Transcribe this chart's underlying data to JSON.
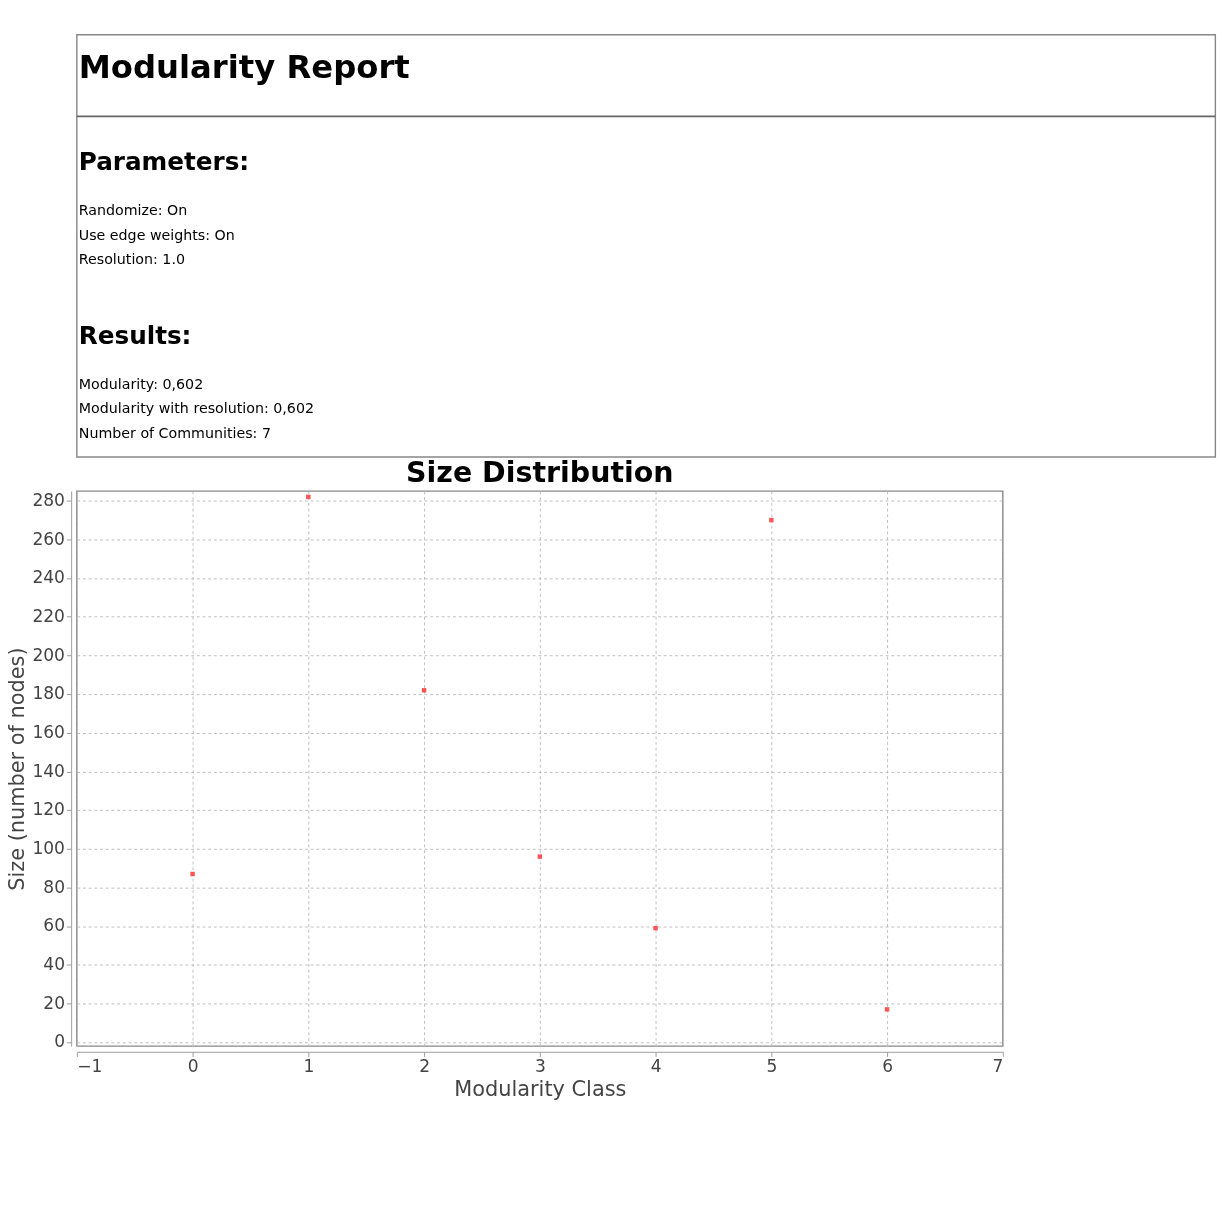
{
  "chart_data": {
    "type": "scatter",
    "title": "Size Distribution",
    "xlabel": "Modularity Class",
    "ylabel": "Size (number of nodes)",
    "annotations": [
      "Modularity Report",
      "Parameters:",
      "Randomize: On",
      "Use edge weights: On",
      "Resolution: 1.0",
      "Results:",
      "Modularity: 0,602",
      "Modularity with resolution: 0,602",
      "Number of Communities: 7"
    ],
    "x": [
      0,
      1,
      2,
      3,
      4,
      5,
      6
    ],
    "series": [
      {
        "color": "#ff5555",
        "values": [
          87,
          282,
          182,
          96,
          59,
          270,
          17
        ]
      }
    ],
    "xlim": [
      -1,
      7
    ],
    "xticks": [
      -1,
      0,
      1,
      2,
      3,
      4,
      5,
      6,
      7
    ],
    "ylim": [
      -2,
      285
    ],
    "yticks": [
      0,
      20,
      40,
      60,
      80,
      100,
      120,
      140,
      160,
      180,
      200,
      220,
      240,
      260,
      280
    ],
    "grid": true,
    "marker": "square",
    "legend": false
  }
}
